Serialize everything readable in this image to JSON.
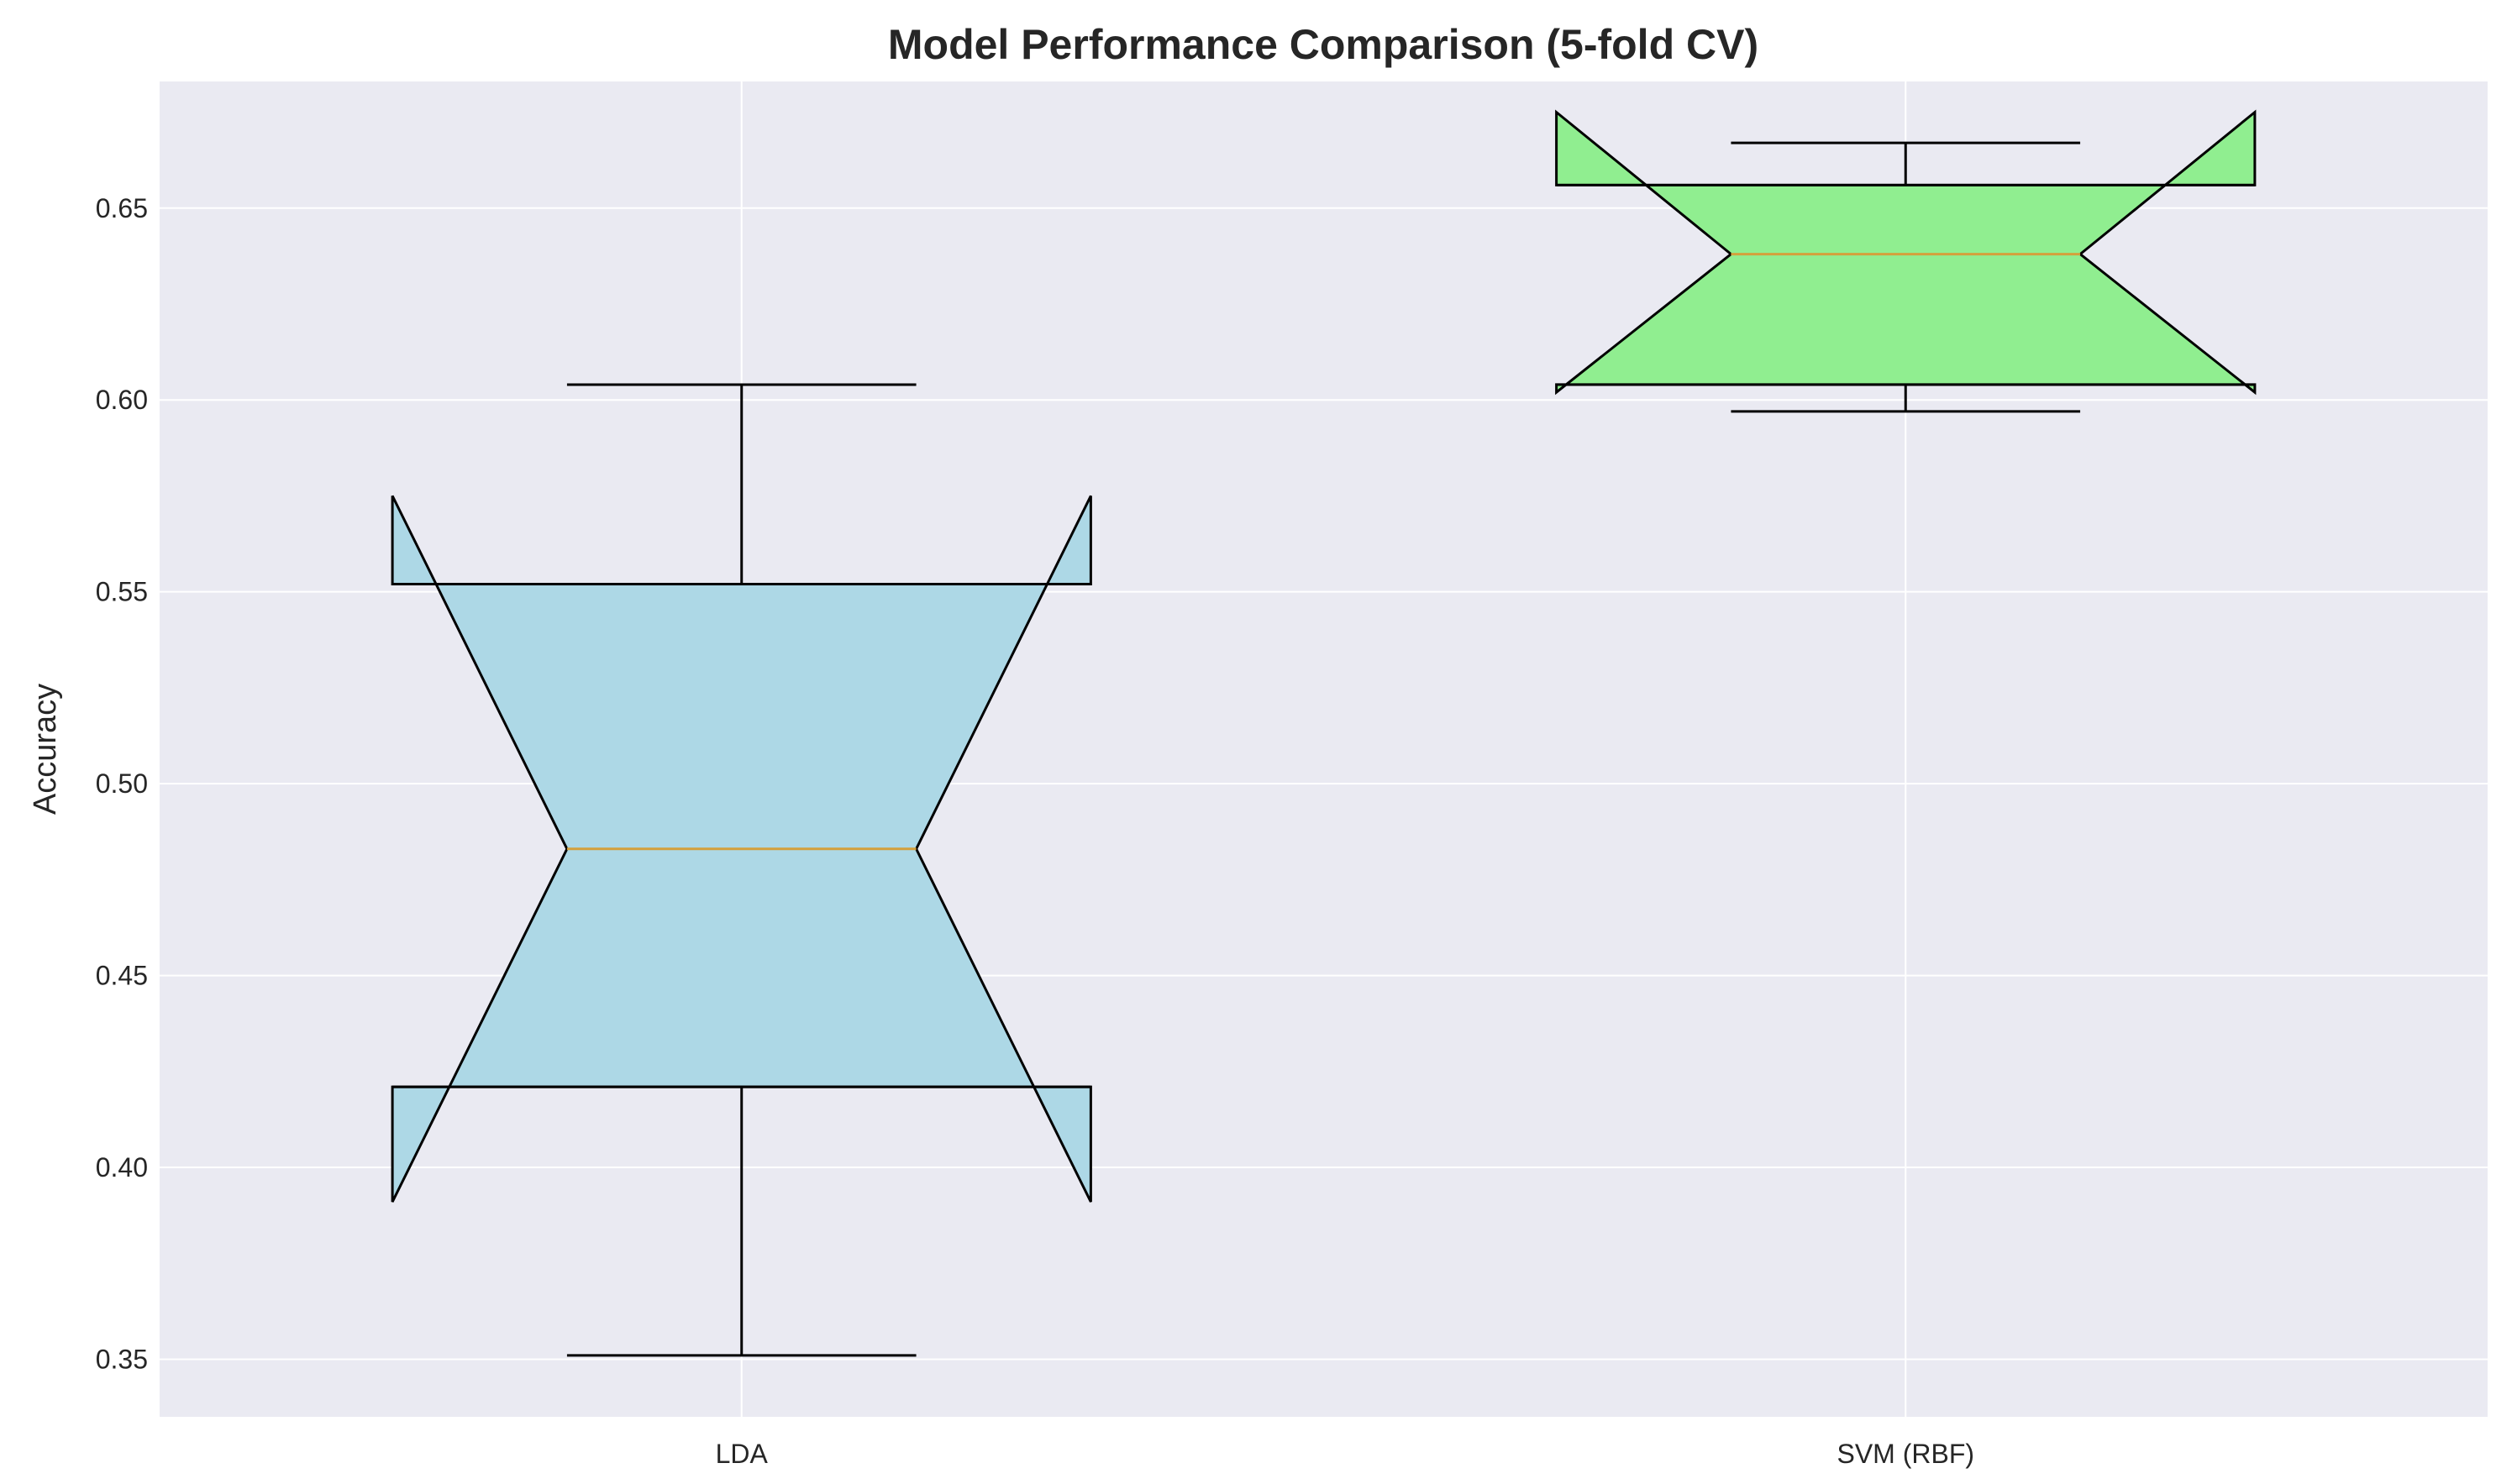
{
  "chart_data": {
    "type": "box",
    "title": "Model Performance Comparison (5-fold CV)",
    "xlabel": "",
    "ylabel": "Accuracy",
    "ylim": [
      0.335,
      0.683
    ],
    "yticks": [
      0.35,
      0.4,
      0.45,
      0.5,
      0.55,
      0.6,
      0.65
    ],
    "ytick_labels": [
      "0.35",
      "0.40",
      "0.45",
      "0.50",
      "0.55",
      "0.60",
      "0.65"
    ],
    "categories": [
      "LDA",
      "SVM (RBF)"
    ],
    "grid": true,
    "notched": true,
    "boxes": [
      {
        "label": "LDA",
        "whisker_low": 0.351,
        "q1": 0.421,
        "median": 0.483,
        "q3": 0.552,
        "whisker_high": 0.604,
        "notch_low": 0.391,
        "notch_high": 0.575,
        "color": "#add8e6"
      },
      {
        "label": "SVM (RBF)",
        "whisker_low": 0.597,
        "q1": 0.604,
        "median": 0.638,
        "q3": 0.656,
        "whisker_high": 0.667,
        "notch_low": 0.602,
        "notch_high": 0.675,
        "color": "#90ee90"
      }
    ],
    "colors": {
      "plot_background": "#eaeaf2",
      "grid": "#ffffff",
      "median_line": "#d4a03c",
      "edge": "#000000"
    }
  }
}
